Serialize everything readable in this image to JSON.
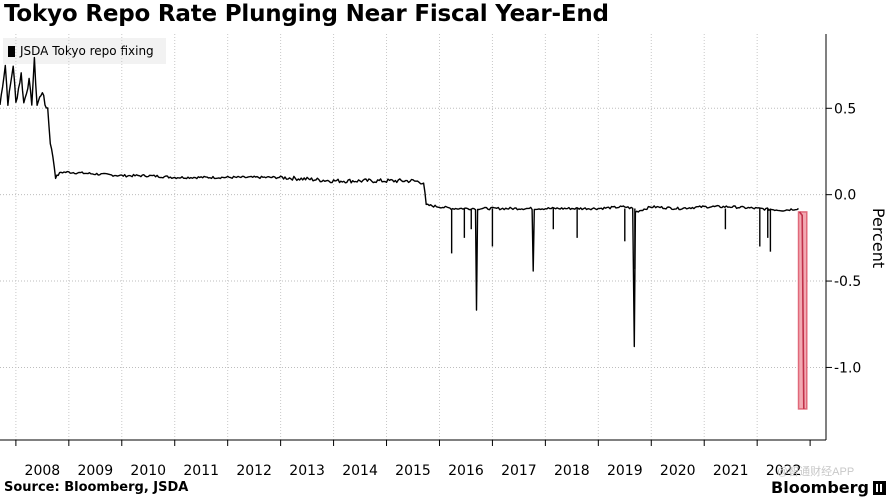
{
  "chart_data": {
    "type": "line",
    "title": "Tokyo Repo Rate Plunging Near Fiscal Year-End",
    "ylabel": "Percent",
    "xlabel": "",
    "xlim": [
      2007.7,
      2023.3
    ],
    "ylim": [
      -1.42,
      0.93
    ],
    "x_ticks": [
      "2008",
      "2009",
      "2010",
      "2011",
      "2012",
      "2013",
      "2014",
      "2015",
      "2016",
      "2017",
      "2018",
      "2019",
      "2020",
      "2021",
      "2022"
    ],
    "y_ticks": [
      0.5,
      0.0,
      -0.5,
      -1.0
    ],
    "y_tick_labels": [
      "0.5",
      "0.0",
      "-0.5",
      "-1.0"
    ],
    "grid": "dotted",
    "legend": "top-left",
    "series": [
      {
        "name": "JSDA Tokyo repo fixing",
        "color": "#000000",
        "points": [
          [
            2007.7,
            0.52
          ],
          [
            2007.8,
            0.75
          ],
          [
            2007.85,
            0.53
          ],
          [
            2007.95,
            0.75
          ],
          [
            2008.0,
            0.53
          ],
          [
            2008.1,
            0.7
          ],
          [
            2008.15,
            0.53
          ],
          [
            2008.25,
            0.66
          ],
          [
            2008.3,
            0.53
          ],
          [
            2008.35,
            0.78
          ],
          [
            2008.4,
            0.52
          ],
          [
            2008.5,
            0.6
          ],
          [
            2008.55,
            0.52
          ],
          [
            2008.6,
            0.5
          ],
          [
            2008.65,
            0.3
          ],
          [
            2008.7,
            0.22
          ],
          [
            2008.75,
            0.1
          ],
          [
            2008.85,
            0.13
          ],
          [
            2009.0,
            0.13
          ],
          [
            2009.5,
            0.12
          ],
          [
            2010.0,
            0.11
          ],
          [
            2010.5,
            0.11
          ],
          [
            2011.0,
            0.1
          ],
          [
            2011.5,
            0.1
          ],
          [
            2012.0,
            0.1
          ],
          [
            2012.5,
            0.1
          ],
          [
            2013.0,
            0.1
          ],
          [
            2013.5,
            0.09
          ],
          [
            2014.0,
            0.08
          ],
          [
            2014.5,
            0.08
          ],
          [
            2015.0,
            0.08
          ],
          [
            2015.5,
            0.08
          ],
          [
            2015.7,
            0.07
          ],
          [
            2015.75,
            -0.06
          ],
          [
            2016.0,
            -0.07
          ],
          [
            2016.25,
            -0.08
          ],
          [
            2016.5,
            -0.08
          ],
          [
            2016.68,
            -0.08
          ],
          [
            2016.7,
            -0.67
          ],
          [
            2016.72,
            -0.08
          ],
          [
            2017.0,
            -0.08
          ],
          [
            2017.5,
            -0.08
          ],
          [
            2017.75,
            -0.08
          ],
          [
            2017.77,
            -0.44
          ],
          [
            2017.79,
            -0.08
          ],
          [
            2018.0,
            -0.08
          ],
          [
            2018.5,
            -0.08
          ],
          [
            2019.0,
            -0.08
          ],
          [
            2019.5,
            -0.07
          ],
          [
            2019.65,
            -0.08
          ],
          [
            2019.68,
            -0.88
          ],
          [
            2019.7,
            -0.1
          ],
          [
            2020.0,
            -0.07
          ],
          [
            2020.5,
            -0.08
          ],
          [
            2021.0,
            -0.07
          ],
          [
            2021.5,
            -0.07
          ],
          [
            2022.0,
            -0.08
          ],
          [
            2022.5,
            -0.09
          ],
          [
            2022.78,
            -0.08
          ]
        ]
      },
      {
        "name": "",
        "color": "#e0697a",
        "points": [
          [
            2022.8,
            -0.1
          ],
          [
            2022.85,
            -0.12
          ],
          [
            2022.88,
            -1.24
          ]
        ]
      }
    ],
    "spikes": [
      [
        2016.23,
        -0.34
      ],
      [
        2016.47,
        -0.25
      ],
      [
        2016.6,
        -0.2
      ],
      [
        2017.0,
        -0.3
      ],
      [
        2018.15,
        -0.2
      ],
      [
        2018.6,
        -0.25
      ],
      [
        2019.5,
        -0.27
      ],
      [
        2019.69,
        -0.43
      ],
      [
        2021.4,
        -0.2
      ],
      [
        2022.05,
        -0.3
      ],
      [
        2022.25,
        -0.33
      ],
      [
        2022.2,
        -0.25
      ]
    ]
  },
  "source": "Source: Bloomberg, JSDA",
  "brand": "Bloomberg",
  "watermark": "@智通财经APP"
}
